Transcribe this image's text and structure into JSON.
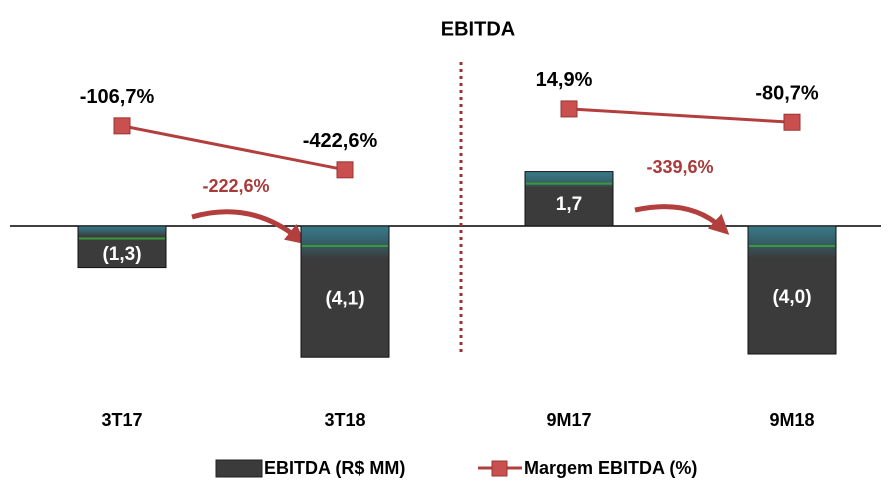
{
  "chart_data": {
    "type": "bar-line",
    "title": "EBITDA",
    "categories": [
      "3T17",
      "3T18",
      "9M17",
      "9M18"
    ],
    "series": [
      {
        "name": "EBITDA (R$ MM)",
        "type": "bar",
        "color": "#3b3b3b",
        "values": [
          -1.3,
          -4.1,
          1.7,
          -4.0
        ],
        "value_labels": [
          "(1,3)",
          "(4,1)",
          "1,7",
          "(4,0)"
        ]
      },
      {
        "name": "Margem EBITDA (%)",
        "type": "line",
        "axis": "y2",
        "color": "#b23f3d",
        "values": [
          -106.7,
          -422.6,
          14.9,
          -80.7
        ],
        "value_labels": [
          "-106,7%",
          "-422,6%",
          "14,9%",
          "-80,7%"
        ]
      }
    ],
    "annotations": [
      "-222,6%",
      "-339,6%"
    ]
  }
}
